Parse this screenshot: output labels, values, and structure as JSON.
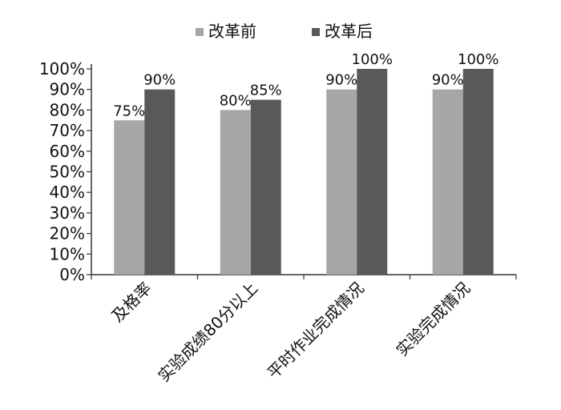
{
  "chart_data": {
    "type": "bar",
    "title": "",
    "xlabel": "",
    "ylabel": "",
    "categories": [
      "及格率",
      "实验成绩80分以上",
      "平时作业完成情况",
      "实验完成情况"
    ],
    "series": [
      {
        "name": "改革前",
        "values": [
          75,
          80,
          90,
          90
        ],
        "color": "#a6a6a6",
        "labels": [
          "75%",
          "80%",
          "90%",
          "90%"
        ]
      },
      {
        "name": "改革后",
        "values": [
          90,
          85,
          100,
          100
        ],
        "color": "#595959",
        "labels": [
          "90%",
          "85%",
          "100%",
          "100%"
        ]
      }
    ],
    "ylim": [
      0,
      100
    ],
    "yticks": [
      "0%",
      "10%",
      "20%",
      "30%",
      "40%",
      "50%",
      "60%",
      "70%",
      "80%",
      "90%",
      "100%"
    ],
    "grid": false,
    "legend_position": "top-center"
  }
}
